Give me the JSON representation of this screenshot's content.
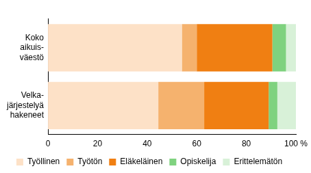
{
  "chart_data": {
    "type": "bar",
    "orientation": "horizontal",
    "stacked": true,
    "categories": [
      [
        "Koko",
        "aikuis-",
        "väestö"
      ],
      [
        "Velka-",
        "järjestelyä",
        "hakeneet"
      ]
    ],
    "series": [
      {
        "name": "Työllinen",
        "color": "#fde1c7",
        "values": [
          54,
          44.5
        ]
      },
      {
        "name": "Työtön",
        "color": "#f5b26e",
        "values": [
          6,
          18.5
        ]
      },
      {
        "name": "Eläkeläinen",
        "color": "#f07f12",
        "values": [
          30.5,
          26
        ]
      },
      {
        "name": "Opiskelija",
        "color": "#7fd27f",
        "values": [
          5.5,
          3.5
        ]
      },
      {
        "name": "Erittelemätön",
        "color": "#d8f1d8",
        "values": [
          4,
          7.5
        ]
      }
    ],
    "xlim": [
      0,
      100
    ],
    "xticks": [
      0,
      20,
      40,
      60,
      80,
      {
        "value": 100,
        "label": "100 %"
      }
    ],
    "grid": false,
    "legend": "bottom"
  }
}
